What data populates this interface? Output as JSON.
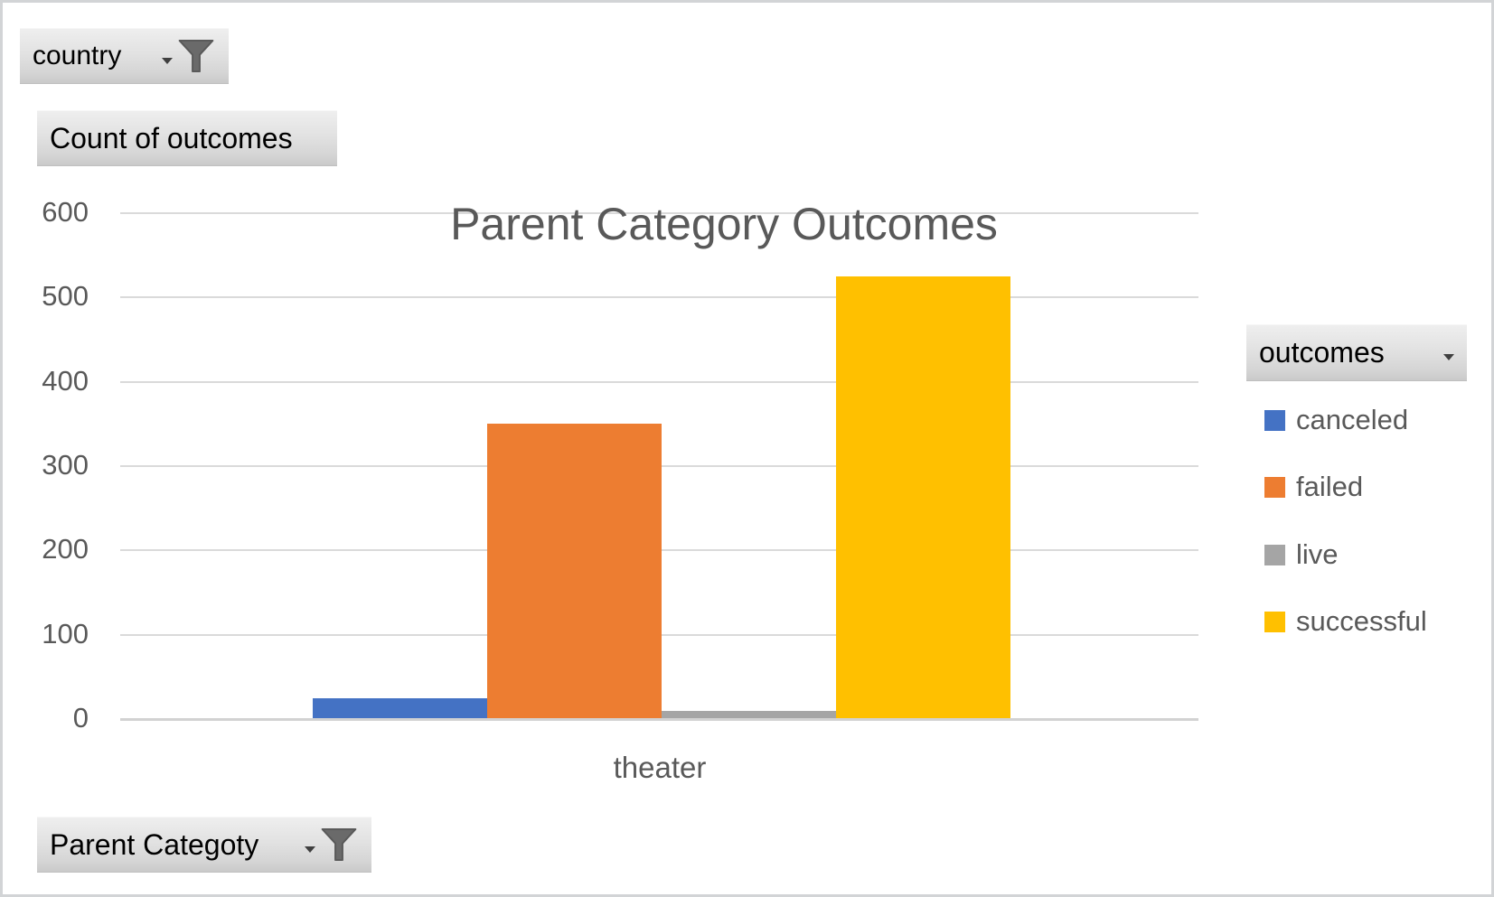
{
  "field_buttons": {
    "country": {
      "label": "country"
    },
    "values_field": {
      "label": "Count of outcomes"
    },
    "legend_field": {
      "label": "outcomes"
    },
    "axis_field": {
      "label": "Parent Categoty"
    }
  },
  "chart_data": {
    "type": "bar",
    "title": "Parent Category Outcomes",
    "categories": [
      "theater"
    ],
    "series": [
      {
        "name": "canceled",
        "color": "#4472C4",
        "values": [
          25
        ]
      },
      {
        "name": "failed",
        "color": "#ED7D31",
        "values": [
          350
        ]
      },
      {
        "name": "live",
        "color": "#A5A5A5",
        "values": [
          10
        ]
      },
      {
        "name": "successful",
        "color": "#FFC000",
        "values": [
          525
        ]
      }
    ],
    "ylim": [
      0,
      600
    ],
    "yticks": [
      0,
      100,
      200,
      300,
      400,
      500,
      600
    ],
    "grid": true,
    "legend_position": "right",
    "colors": {
      "title_text": "#595959",
      "axis_text": "#595959",
      "gridline": "#DADADA"
    }
  }
}
